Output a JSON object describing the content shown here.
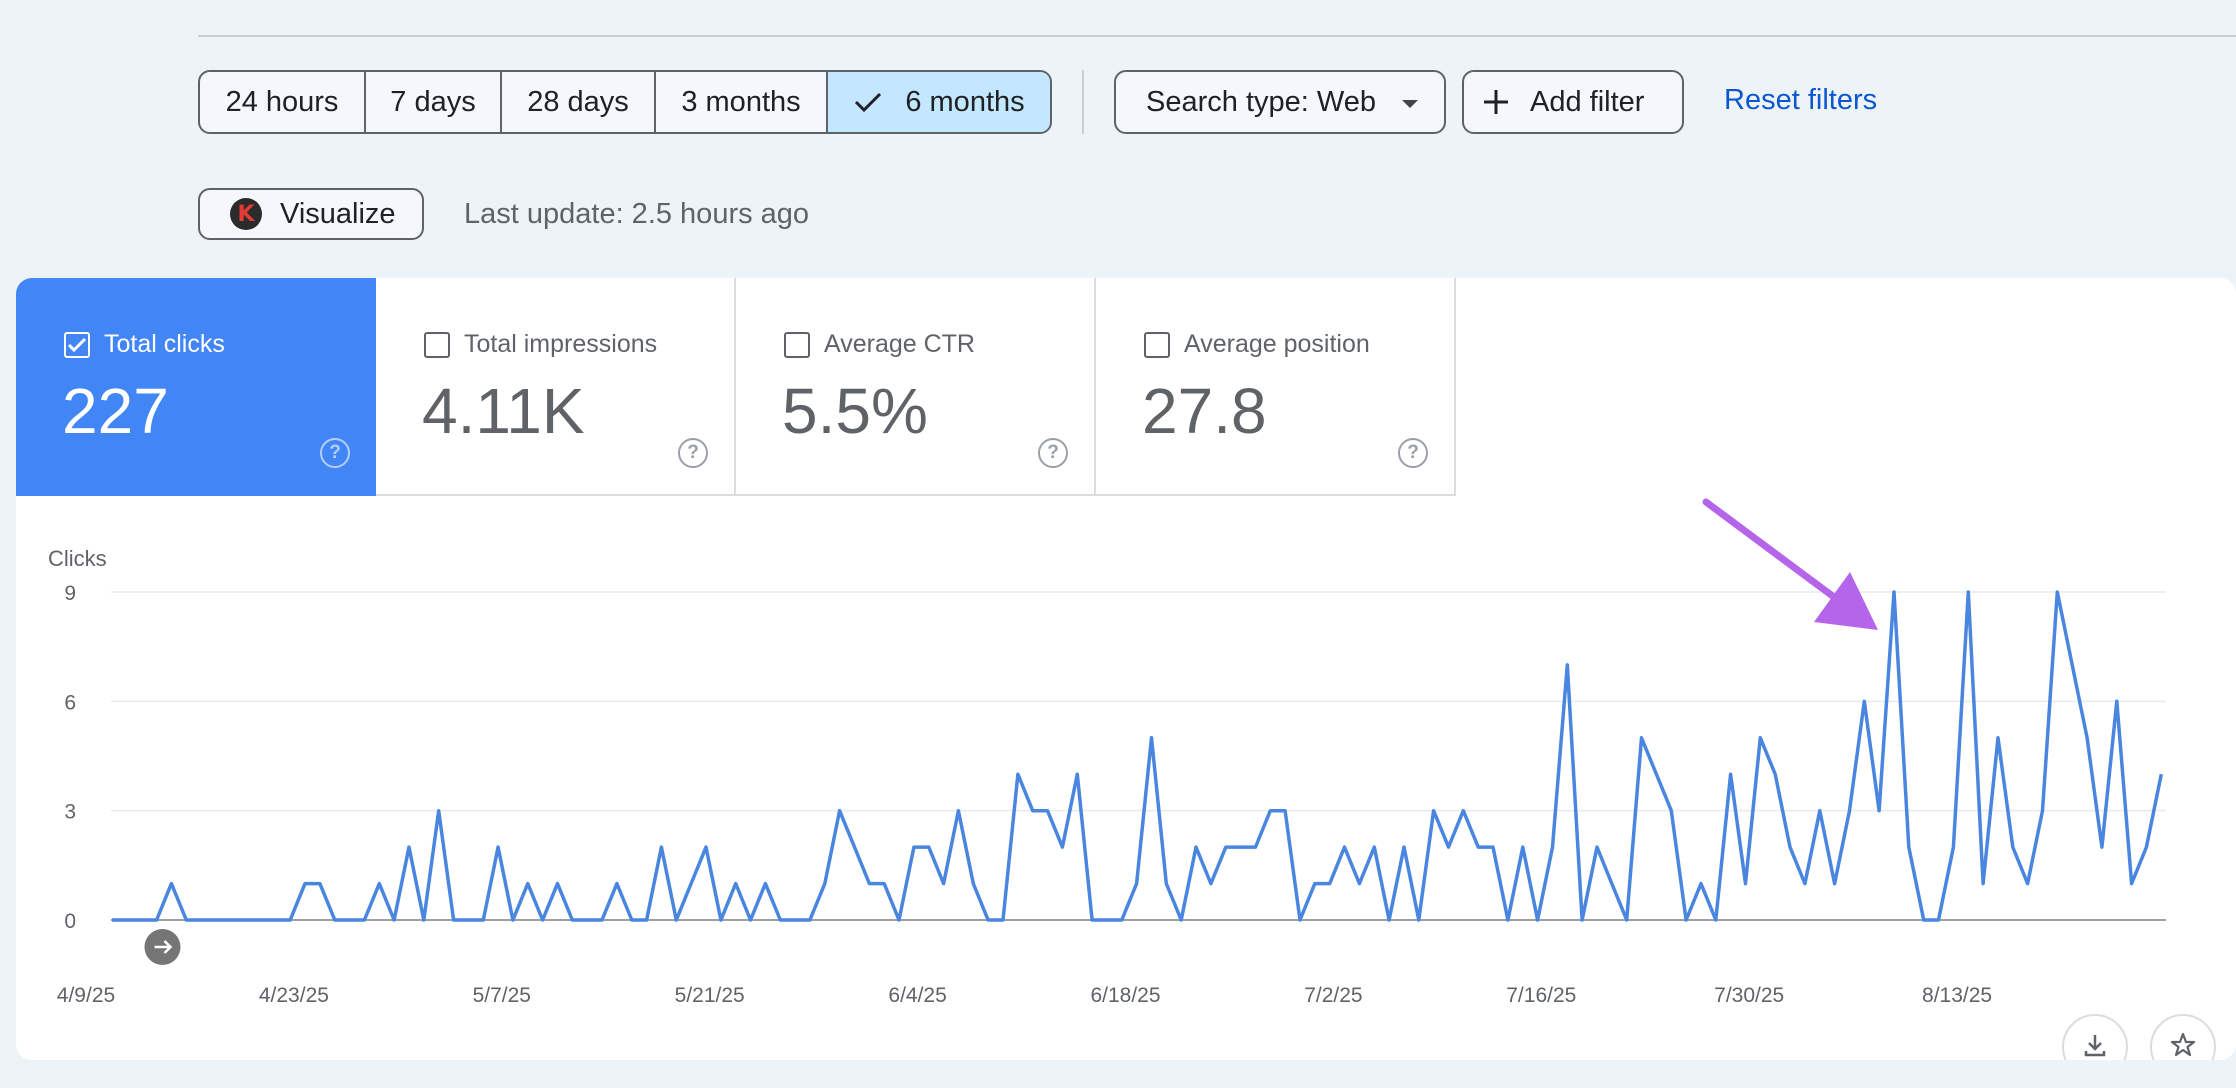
{
  "filters": {
    "date_ranges": [
      {
        "label": "24 hours",
        "active": false
      },
      {
        "label": "7 days",
        "active": false
      },
      {
        "label": "28 days",
        "active": false
      },
      {
        "label": "3 months",
        "active": false
      },
      {
        "label": "6 months",
        "active": true
      }
    ],
    "search_type_label": "Search type: Web",
    "add_filter_label": "Add filter",
    "reset_label": "Reset filters"
  },
  "toolbar": {
    "visualize_label": "Visualize",
    "logo_letter": "K",
    "last_update": "Last update: 2.5 hours ago"
  },
  "metrics": [
    {
      "label": "Total clicks",
      "value": "227",
      "checked": true
    },
    {
      "label": "Total impressions",
      "value": "4.11K",
      "checked": false
    },
    {
      "label": "Average CTR",
      "value": "5.5%",
      "checked": false
    },
    {
      "label": "Average position",
      "value": "27.8",
      "checked": false
    }
  ],
  "colors": {
    "accent": "#4285f4",
    "line": "#4a86e0",
    "arrow": "#b565ea",
    "link": "#0b57d0"
  },
  "chart_data": {
    "type": "line",
    "ylabel": "Clicks",
    "ylim": [
      0,
      9
    ],
    "yticks": [
      0,
      3,
      6,
      9
    ],
    "x_tick_labels": [
      "4/9/25",
      "4/23/25",
      "5/7/25",
      "5/21/25",
      "6/4/25",
      "6/18/25",
      "7/2/25",
      "7/16/25",
      "7/30/25",
      "8/13/25"
    ],
    "start_date": "2025-04-09",
    "grid": true,
    "legend": "none",
    "series": [
      {
        "values": [
          0,
          0,
          0,
          0,
          1,
          0,
          0,
          0,
          0,
          0,
          0,
          0,
          0,
          1,
          1,
          0,
          0,
          0,
          1,
          0,
          2,
          0,
          3,
          0,
          0,
          0,
          2,
          0,
          1,
          0,
          1,
          0,
          0,
          0,
          1,
          0,
          0,
          2,
          0,
          1,
          2,
          0,
          1,
          0,
          1,
          0,
          0,
          0,
          1,
          3,
          2,
          1,
          1,
          0,
          2,
          2,
          1,
          3,
          1,
          0,
          0,
          4,
          3,
          3,
          2,
          4,
          0,
          0,
          0,
          1,
          5,
          1,
          0,
          2,
          1,
          2,
          2,
          2,
          3,
          3,
          0,
          1,
          1,
          2,
          1,
          2,
          0,
          2,
          0,
          3,
          2,
          3,
          2,
          2,
          0,
          2,
          0,
          2,
          7,
          0,
          2,
          1,
          0,
          5,
          4,
          3,
          0,
          1,
          0,
          4,
          1,
          5,
          4,
          2,
          1,
          3,
          1,
          3,
          6,
          3,
          9,
          2,
          0,
          0,
          2,
          9,
          1,
          5,
          2,
          1,
          3,
          9,
          7,
          5,
          2,
          6,
          1,
          2,
          4
        ]
      }
    ],
    "annotations": [
      {
        "type": "arrow",
        "target_index": 120
      }
    ]
  }
}
